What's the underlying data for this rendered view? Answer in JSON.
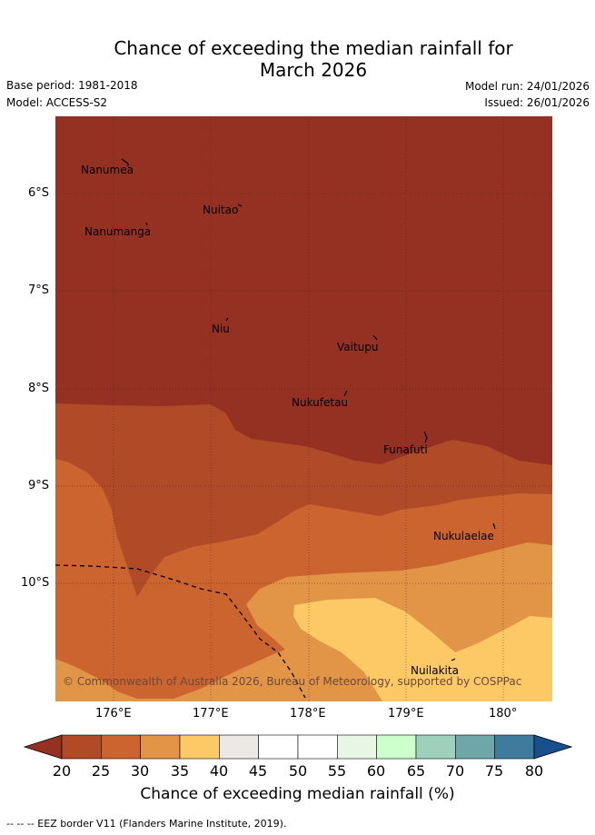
{
  "header": {
    "title_line1": "Chance of exceeding the median rainfall for",
    "title_line2": "March 2026",
    "base_period": "Base period: 1981-2018",
    "model": "Model: ACCESS-S2",
    "model_run": "Model run: 24/01/2026",
    "issued": "Issued: 26/01/2026"
  },
  "map": {
    "latitude_labels": [
      "6°S",
      "7°S",
      "8°S",
      "9°S",
      "10°S"
    ],
    "longitude_labels": [
      "176°E",
      "177°E",
      "178°E",
      "179°E",
      "180°"
    ],
    "places": [
      {
        "name": "Nanumea"
      },
      {
        "name": "Nuitao"
      },
      {
        "name": "Nanumanga"
      },
      {
        "name": "Niu"
      },
      {
        "name": "Vaitupu"
      },
      {
        "name": "Nukufetau"
      },
      {
        "name": "Funafuti"
      },
      {
        "name": "Nukulaelae"
      },
      {
        "name": "Nuilakita"
      }
    ],
    "copyright": "© Commonwealth of Australia 2026, Bureau of Meteorology, supported by COSPPac"
  },
  "colorbar": {
    "ticks": [
      "20",
      "25",
      "30",
      "35",
      "40",
      "45",
      "50",
      "55",
      "60",
      "65",
      "70",
      "75",
      "80"
    ],
    "colors": [
      "#943123",
      "#b04a27",
      "#cc6430",
      "#e29447",
      "#fdc866",
      "#ebe8e6",
      "#ffffff",
      "#ffffff",
      "#e8f6e6",
      "#ccffcc",
      "#9ed0bb",
      "#6fa6a8",
      "#3f7b9c",
      "#184f8d"
    ],
    "label": "Chance of exceeding median rainfall (%)"
  },
  "footer": {
    "legend": "-- -- -- EEZ border V11 (Flanders Marine Institute, 2019)."
  }
}
